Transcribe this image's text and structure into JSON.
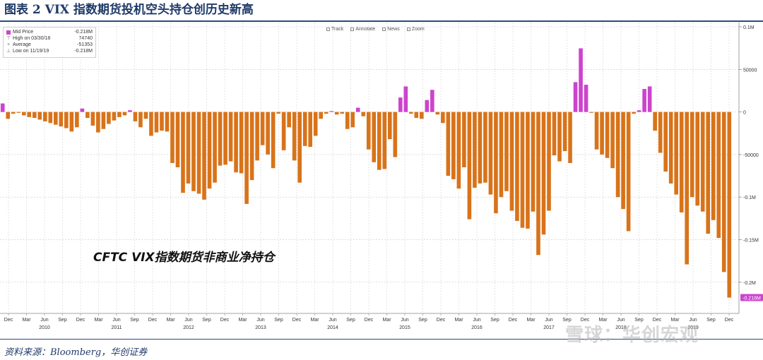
{
  "title": "图表 2 VIX 指数期货投机空头持仓创历史新高",
  "toolbar": {
    "track": "Track",
    "annotate": "Annotate",
    "news": "News",
    "zoom": "Zoom"
  },
  "legend": {
    "series_label": "Mid Price",
    "series_value": "-0.218M",
    "high_label": "High on 03/30/18",
    "high_value": "74740",
    "avg_label": "Average",
    "avg_value": "-51353",
    "low_label": "Low on 11/19/19",
    "low_value": "-0.218M"
  },
  "annotation": "CFTC VIX指数期货非商业净持仓",
  "source": "资料来源：Bloomberg，华创证券",
  "watermark": "雪球：华创宏观",
  "colors": {
    "positive": "#cc44cc",
    "negative": "#d8731a",
    "grid": "#c8c8c8",
    "badge": "#cc44cc"
  },
  "chart_data": {
    "type": "bar",
    "title": "",
    "xlabel": "",
    "ylabel": "",
    "ylim": [
      -225000,
      100000
    ],
    "grid": true,
    "yticks": [
      "0.1M",
      "50000",
      "0",
      "-50000",
      "-0.1M",
      "-0.15M",
      "-0.2M"
    ],
    "ytick_values": [
      100000,
      50000,
      0,
      -50000,
      -100000,
      -150000,
      -200000
    ],
    "last_value_label": "-0.218M",
    "x_month_labels": [
      "Dec",
      "Mar",
      "Jun",
      "Sep",
      "Dec",
      "Mar",
      "Jun",
      "Sep",
      "Dec",
      "Mar",
      "Jun",
      "Sep",
      "Dec",
      "Mar",
      "Jun",
      "Sep",
      "Dec",
      "Mar",
      "Jun",
      "Sep",
      "Dec",
      "Mar",
      "Jun",
      "Sep",
      "Dec",
      "Mar",
      "Jun",
      "Sep",
      "Dec",
      "Mar",
      "Jun",
      "Sep",
      "Dec",
      "Mar",
      "Jun",
      "Sep",
      "Dec",
      "Mar",
      "Jun",
      "Sep",
      "Dec"
    ],
    "x_year_labels": [
      "2010",
      "2011",
      "2012",
      "2013",
      "2014",
      "2015",
      "2016",
      "2017",
      "2018",
      "2019"
    ],
    "values": [
      10000,
      -8000,
      -2000,
      -1000,
      -4000,
      -6000,
      -7000,
      -9000,
      -11000,
      -13000,
      -15000,
      -17000,
      -19000,
      -23000,
      -18000,
      4000,
      -7000,
      -16000,
      -24000,
      -20000,
      -14000,
      -10000,
      -6000,
      -4000,
      2000,
      -11000,
      -18000,
      -8000,
      -28000,
      -24000,
      -22000,
      -23000,
      -60000,
      -65000,
      -95000,
      -84000,
      -93000,
      -96000,
      -103000,
      -90000,
      -83000,
      -63000,
      -62000,
      -58000,
      -71000,
      -72000,
      -108000,
      -80000,
      -57000,
      -39000,
      -50000,
      -66000,
      -2000,
      -45000,
      -18000,
      -57000,
      -83000,
      -40000,
      -41000,
      -28000,
      -8000,
      -2000,
      1000,
      -3000,
      -2000,
      -20000,
      -18000,
      5000,
      -5000,
      -44000,
      -59000,
      -68000,
      -67000,
      -32000,
      -53000,
      17000,
      30000,
      -2000,
      -7000,
      -8000,
      14000,
      26000,
      -3000,
      -13000,
      -75000,
      -79000,
      -90000,
      -65000,
      -126000,
      -89000,
      -84000,
      -83000,
      -97000,
      -119000,
      -100000,
      -93000,
      -116000,
      -128000,
      -136000,
      -137000,
      -117000,
      -168000,
      -144000,
      -116000,
      -51000,
      -58000,
      -46000,
      -60000,
      35000,
      74740,
      32000,
      -1000,
      -44000,
      -50000,
      -54000,
      -66000,
      -100000,
      -114000,
      -140000,
      -2000,
      2000,
      27000,
      30000,
      -22000,
      -48000,
      -70000,
      -84000,
      -97000,
      -118000,
      -179000,
      -100000,
      -110000,
      -117000,
      -143000,
      -127000,
      -148000,
      -188000,
      -218000
    ]
  }
}
